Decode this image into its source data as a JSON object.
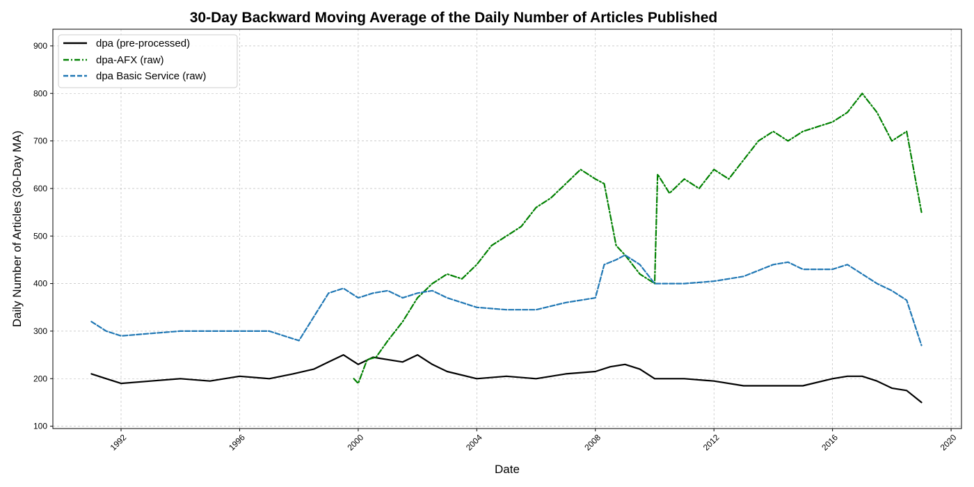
{
  "chart_data": {
    "type": "line",
    "title": "30-Day Backward Moving Average of the Daily Number of Articles Published",
    "xlabel": "Date",
    "ylabel": "Daily Number of Articles (30-Day MA)",
    "xlim": [
      1989.7,
      2020.35
    ],
    "ylim": [
      95,
      935
    ],
    "x_ticks": [
      "1992",
      "1996",
      "2000",
      "2004",
      "2008",
      "2012",
      "2016",
      "2020"
    ],
    "y_ticks": [
      "100",
      "200",
      "300",
      "400",
      "500",
      "600",
      "700",
      "800",
      "900"
    ],
    "grid": true,
    "legend_position": "top-left",
    "series": [
      {
        "name": "dpa (pre-processed)",
        "color": "#000000",
        "style": "solid",
        "x": [
          1991.0,
          1991.5,
          1992.0,
          1993.0,
          1994.0,
          1995.0,
          1996.0,
          1997.0,
          1997.8,
          1998.5,
          1999.0,
          1999.5,
          2000.0,
          2000.5,
          2001.0,
          2001.5,
          2002.0,
          2002.5,
          2003.0,
          2004.0,
          2005.0,
          2006.0,
          2007.0,
          2008.0,
          2008.5,
          2009.0,
          2009.5,
          2010.0,
          2011.0,
          2012.0,
          2013.0,
          2014.0,
          2015.0,
          2016.0,
          2016.5,
          2017.0,
          2017.5,
          2018.0,
          2018.5,
          2019.0
        ],
        "y": [
          210,
          200,
          190,
          195,
          200,
          195,
          205,
          200,
          210,
          220,
          235,
          250,
          230,
          245,
          240,
          235,
          250,
          230,
          215,
          200,
          205,
          200,
          210,
          215,
          225,
          230,
          220,
          200,
          200,
          195,
          185,
          185,
          185,
          200,
          205,
          205,
          195,
          180,
          175,
          150
        ]
      },
      {
        "name": "dpa-AFX (raw)",
        "color": "#008000",
        "style": "dashdot",
        "x": [
          1999.85,
          2000.0,
          2000.3,
          2000.6,
          2001.0,
          2001.5,
          2002.0,
          2002.5,
          2003.0,
          2003.5,
          2004.0,
          2004.5,
          2005.0,
          2005.5,
          2006.0,
          2006.5,
          2007.0,
          2007.5,
          2008.0,
          2008.3,
          2008.7,
          2009.0,
          2009.5,
          2010.0,
          2010.1,
          2010.5,
          2011.0,
          2011.5,
          2012.0,
          2012.5,
          2013.0,
          2013.5,
          2014.0,
          2014.5,
          2015.0,
          2015.5,
          2016.0,
          2016.5,
          2017.0,
          2017.5,
          2018.0,
          2018.5,
          2019.0
        ],
        "y": [
          200,
          190,
          240,
          245,
          280,
          320,
          370,
          400,
          420,
          410,
          440,
          480,
          500,
          520,
          560,
          580,
          610,
          640,
          620,
          610,
          480,
          460,
          420,
          400,
          630,
          590,
          620,
          600,
          640,
          620,
          660,
          700,
          720,
          700,
          720,
          730,
          740,
          760,
          800,
          760,
          700,
          720,
          550
        ]
      },
      {
        "name": "dpa Basic Service (raw)",
        "color": "#1f77b4",
        "style": "dashed",
        "x": [
          1991.0,
          1991.5,
          1992.0,
          1993.0,
          1994.0,
          1995.0,
          1996.0,
          1997.0,
          1997.5,
          1998.0,
          1998.5,
          1999.0,
          1999.5,
          2000.0,
          2000.5,
          2001.0,
          2001.5,
          2002.0,
          2002.5,
          2003.0,
          2004.0,
          2005.0,
          2006.0,
          2007.0,
          2008.0,
          2008.3,
          2008.7,
          2009.0,
          2009.5,
          2010.0,
          2011.0,
          2012.0,
          2013.0,
          2014.0,
          2014.5,
          2015.0,
          2016.0,
          2016.5,
          2017.0,
          2017.5,
          2018.0,
          2018.5,
          2019.0
        ],
        "y": [
          320,
          300,
          290,
          295,
          300,
          300,
          300,
          300,
          290,
          280,
          330,
          380,
          390,
          370,
          380,
          385,
          370,
          380,
          385,
          370,
          350,
          345,
          345,
          360,
          370,
          440,
          450,
          460,
          440,
          400,
          400,
          405,
          415,
          440,
          445,
          430,
          430,
          440,
          420,
          400,
          385,
          365,
          270
        ]
      }
    ]
  }
}
